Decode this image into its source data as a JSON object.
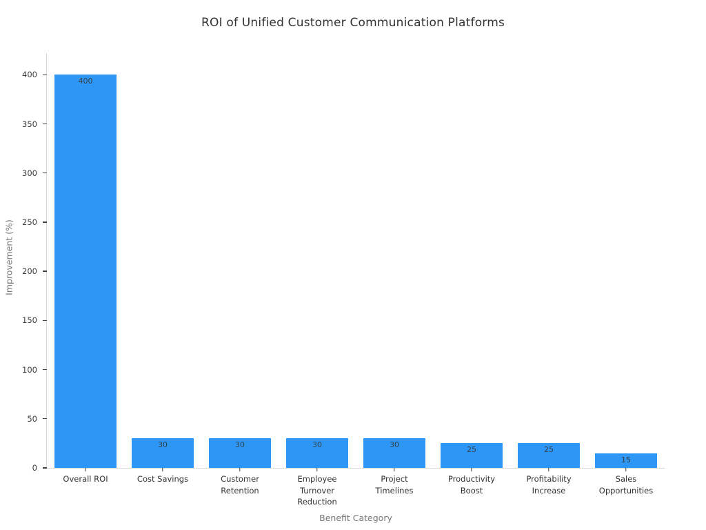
{
  "chart_data": {
    "type": "bar",
    "title": "ROI of Unified Customer Communication Platforms",
    "xlabel": "Benefit Category",
    "ylabel": "Improvement (%)",
    "categories": [
      "Overall ROI",
      "Cost Savings",
      "Customer Retention",
      "Employee Turnover Reduction",
      "Project Timelines",
      "Productivity Boost",
      "Profitability Increase",
      "Sales Opportunities"
    ],
    "values": [
      400,
      30,
      30,
      30,
      30,
      25,
      25,
      15
    ],
    "bar_value_labels": [
      "400",
      "30",
      "30",
      "30",
      "30",
      "25",
      "25",
      "15"
    ],
    "yticks": [
      0,
      50,
      100,
      150,
      200,
      250,
      300,
      350,
      400
    ],
    "ylim": [
      0,
      422
    ],
    "grid": false,
    "legend": "none",
    "bar_color": "#2e96f4",
    "background_color": "#ffffff"
  }
}
